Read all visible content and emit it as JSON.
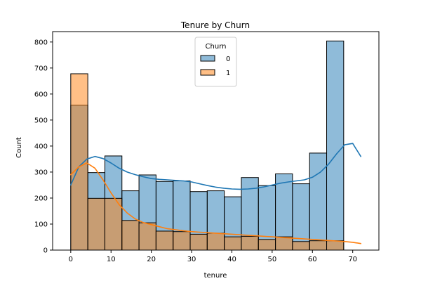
{
  "chart_data": {
    "type": "bar",
    "title": "Tenure by Churn",
    "xlabel": "tenure",
    "ylabel": "Count",
    "xlim": [
      -4.5,
      76.5
    ],
    "ylim": [
      0,
      840
    ],
    "xticks": [
      0,
      10,
      20,
      30,
      40,
      50,
      60,
      70
    ],
    "yticks": [
      0,
      100,
      200,
      300,
      400,
      500,
      600,
      700,
      800
    ],
    "bin_edges": [
      0,
      4.235,
      8.47,
      12.705,
      16.94,
      21.175,
      25.41,
      29.645,
      33.88,
      38.115,
      42.35,
      46.585,
      50.82,
      55.055,
      59.29,
      63.525,
      67.76,
      72
    ],
    "legend": {
      "title": "Churn",
      "placement": "upper-center",
      "entries": [
        "0",
        "1"
      ]
    },
    "grid": false,
    "series": [
      {
        "name": "0",
        "color": "#1f77b4",
        "values": [
          557,
          298,
          362,
          228,
          289,
          264,
          266,
          225,
          228,
          205,
          279,
          248,
          293,
          255,
          373,
          804,
          0
        ],
        "kde": {
          "x": [
            0,
            2,
            4,
            6,
            8,
            10,
            12,
            14,
            16,
            18,
            20,
            22,
            24,
            26,
            28,
            30,
            32,
            34,
            36,
            38,
            40,
            42,
            44,
            46,
            48,
            50,
            52,
            54,
            56,
            58,
            60,
            62,
            64,
            66,
            68,
            70,
            72
          ],
          "y": [
            250,
            320,
            350,
            360,
            352,
            335,
            315,
            300,
            290,
            282,
            275,
            272,
            270,
            268,
            266,
            262,
            255,
            248,
            242,
            238,
            235,
            234,
            235,
            238,
            243,
            250,
            257,
            262,
            266,
            270,
            280,
            300,
            330,
            370,
            405,
            410,
            360
          ]
        }
      },
      {
        "name": "1",
        "color": "#ff7f0e",
        "values": [
          678,
          199,
          199,
          114,
          105,
          73,
          71,
          61,
          65,
          51,
          53,
          41,
          51,
          33,
          36,
          36,
          0
        ],
        "kde": {
          "x": [
            0,
            2,
            4,
            6,
            8,
            10,
            12,
            14,
            16,
            18,
            20,
            22,
            24,
            26,
            28,
            30,
            32,
            34,
            36,
            38,
            40,
            42,
            44,
            46,
            48,
            50,
            52,
            54,
            56,
            58,
            60,
            62,
            64,
            66,
            68,
            70,
            72
          ],
          "y": [
            290,
            320,
            335,
            315,
            270,
            220,
            175,
            143,
            120,
            106,
            98,
            90,
            82,
            78,
            74,
            71,
            69,
            67,
            65,
            63,
            61,
            59,
            57,
            55,
            53,
            51,
            49,
            47,
            45,
            43,
            41,
            39,
            37,
            35,
            33,
            30,
            25
          ]
        }
      }
    ]
  }
}
